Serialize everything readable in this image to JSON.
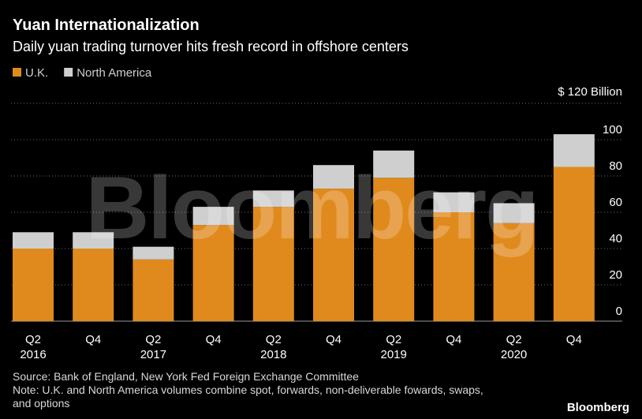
{
  "title": "Yuan Internationalization",
  "subtitle": "Daily yuan trading turnover hits fresh record in offshore centers",
  "unit_label": "$ 120 Billion",
  "source": "Source: Bank of England, New York Fed Foreign Exchange Committee",
  "note_line1": "Note: U.K. and North America volumes combine spot, forwards, non-deliverable fowards, swaps,",
  "note_line2": "and options",
  "brand": "Bloomberg",
  "watermark": "Bloomberg",
  "colors": {
    "background": "#000000",
    "uk": "#e08a1e",
    "north_america": "#cfcfcf",
    "gridline": "#6e6e6e"
  },
  "chart_data": {
    "type": "bar",
    "stacked": true,
    "categories": [
      "Q2 2016",
      "Q4 2016",
      "Q2 2017",
      "Q4 2017",
      "Q2 2018",
      "Q4 2018",
      "Q2 2019",
      "Q4 2019",
      "Q2 2020",
      "Q4 2020"
    ],
    "x_tick_labels": [
      {
        "top": "Q2",
        "bottom": "2016"
      },
      {
        "top": "Q4",
        "bottom": ""
      },
      {
        "top": "Q2",
        "bottom": "2017"
      },
      {
        "top": "Q4",
        "bottom": ""
      },
      {
        "top": "Q2",
        "bottom": "2018"
      },
      {
        "top": "Q4",
        "bottom": ""
      },
      {
        "top": "Q2",
        "bottom": "2019"
      },
      {
        "top": "Q4",
        "bottom": ""
      },
      {
        "top": "Q2",
        "bottom": "2020"
      },
      {
        "top": "Q4",
        "bottom": ""
      }
    ],
    "series": [
      {
        "name": "U.K.",
        "color": "#e08a1e",
        "values": [
          40,
          40,
          34,
          53,
          63,
          73,
          79,
          60,
          54,
          85
        ]
      },
      {
        "name": "North America",
        "color": "#cfcfcf",
        "values": [
          9,
          9,
          7,
          10,
          9,
          13,
          15,
          11,
          11,
          18
        ]
      }
    ],
    "ylim": [
      0,
      120
    ],
    "y_ticks": [
      0,
      20,
      40,
      60,
      80,
      100
    ],
    "y_axis_side": "right",
    "grid": true,
    "legend_position": "top-left"
  }
}
